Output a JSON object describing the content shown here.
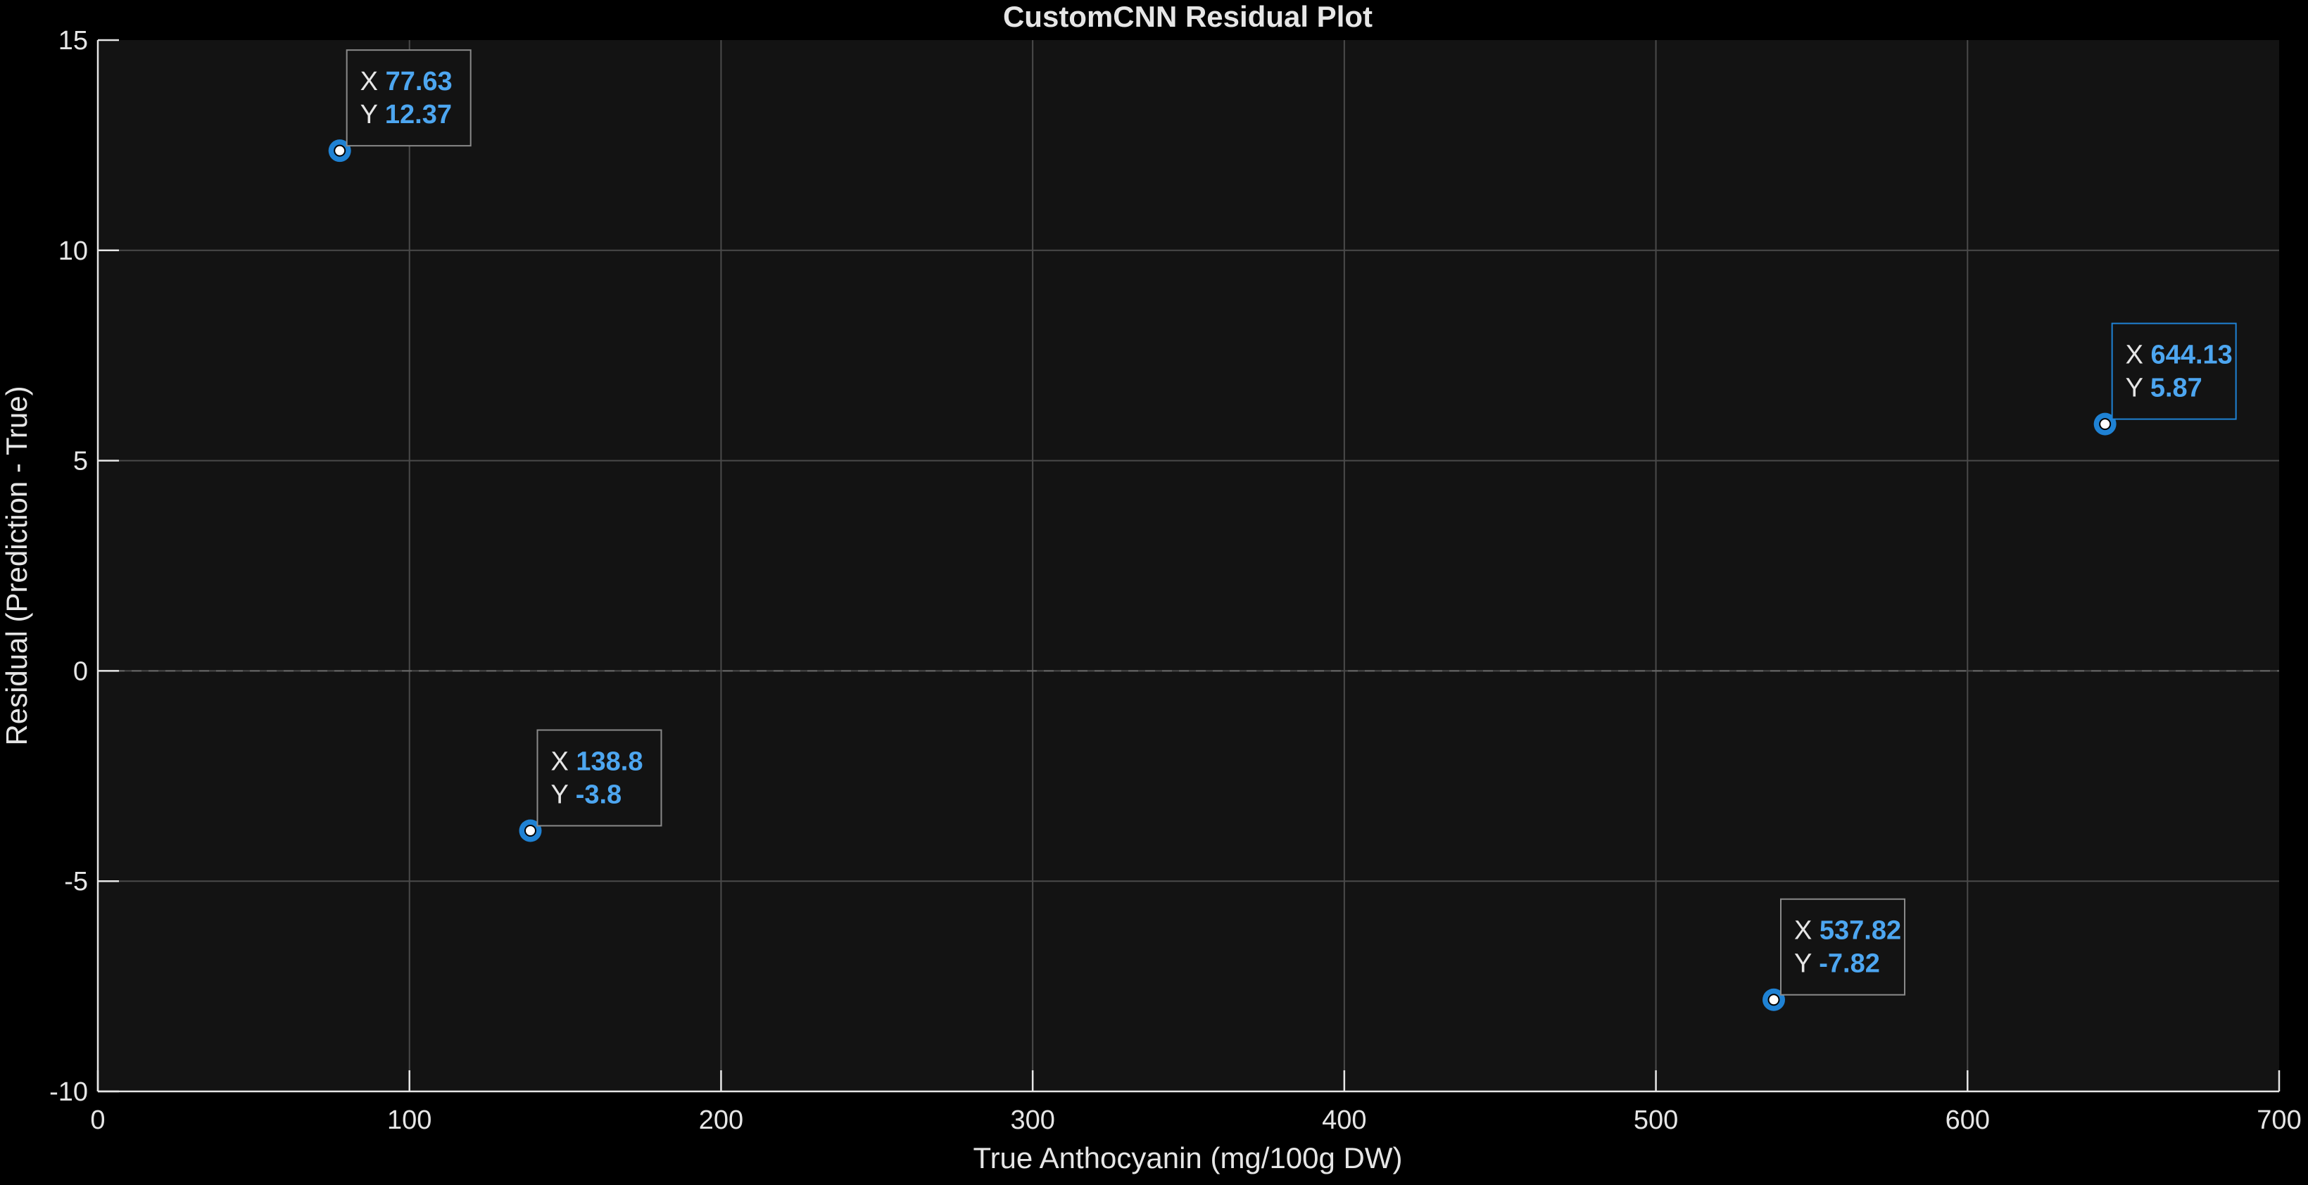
{
  "colors": {
    "figure_background": "#000000",
    "axes_background": "#131313",
    "grid": "#4a4a4a",
    "axis_line": "#e6e6e6",
    "text": "#e6e6e6",
    "marker": "#1f82d4",
    "marker_center": "#ffffff",
    "datatip_value": "#4da6f0",
    "datatip_border_default": "#8a8a8a",
    "datatip_border_selected": "#1f82d4",
    "zero_line": "#6a6a6a"
  },
  "chart_data": {
    "type": "scatter",
    "title": "CustomCNN Residual Plot",
    "xlabel": "True Anthocyanin (mg/100g DW)",
    "ylabel": "Residual (Prediction - True)",
    "xlim": [
      0,
      700
    ],
    "ylim": [
      -10,
      15
    ],
    "xticks": [
      0,
      100,
      200,
      300,
      400,
      500,
      600,
      700
    ],
    "yticks": [
      -10,
      -5,
      0,
      5,
      10,
      15
    ],
    "grid": true,
    "reference_line": {
      "y": 0,
      "style": "dashed"
    },
    "points": [
      {
        "x": 77.63,
        "y": 12.37
      },
      {
        "x": 138.8,
        "y": -3.8
      },
      {
        "x": 537.82,
        "y": -7.82
      },
      {
        "x": 644.13,
        "y": 5.87
      }
    ],
    "datatips": [
      {
        "x_label": "X",
        "y_label": "Y",
        "x_value": "77.63",
        "y_value": "12.37",
        "selected": false
      },
      {
        "x_label": "X",
        "y_label": "Y",
        "x_value": "138.8",
        "y_value": "-3.8",
        "selected": false
      },
      {
        "x_label": "X",
        "y_label": "Y",
        "x_value": "537.82",
        "y_value": "-7.82",
        "selected": false
      },
      {
        "x_label": "X",
        "y_label": "Y",
        "x_value": "644.13",
        "y_value": "5.87",
        "selected": true
      }
    ]
  }
}
